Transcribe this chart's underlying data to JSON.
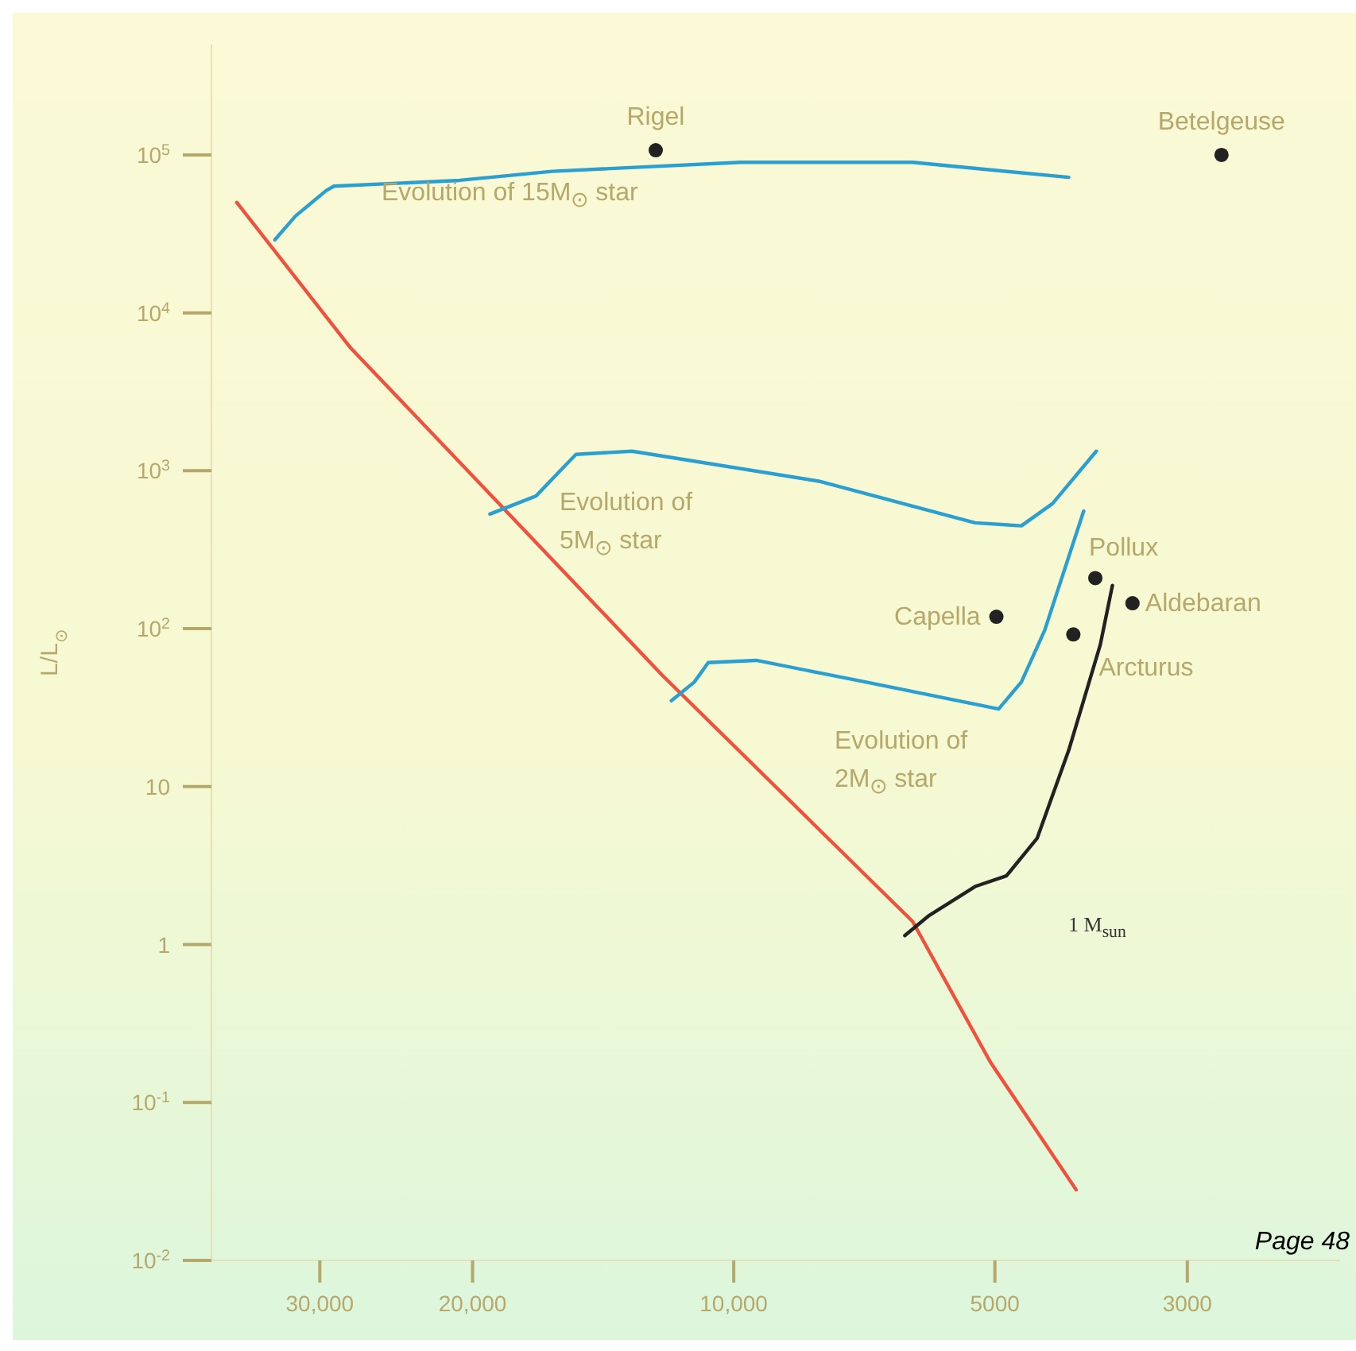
{
  "chart_data": {
    "type": "line",
    "ylabel": "L/L$_{⊙}$",
    "log": "xy",
    "grid": false,
    "marker": "none",
    "line_style": "solid",
    "xlim": [
      40000,
      2000
    ],
    "xticks": [
      {
        "value": 30000,
        "label": "30,000"
      },
      {
        "value": 20000,
        "label": "20,000"
      },
      {
        "value": 10000,
        "label": "10,000"
      },
      5000,
      3000
    ],
    "ylim": [
      0.01,
      500000
    ],
    "yticks": [
      {
        "value": 0.01,
        "label": "10$^{-2}$"
      },
      {
        "value": 0.1,
        "label": "10$^{-1}$"
      },
      1,
      10,
      {
        "value": 100,
        "label": "10$^{2}$"
      },
      {
        "value": 1000,
        "label": "10$^{3}$"
      },
      {
        "value": 10000,
        "label": "10$^{4}$"
      },
      {
        "value": 100000,
        "label": "10$^{5}$"
      }
    ],
    "series": [
      {
        "color": "#f0503c",
        "x": [
          37400,
          27700,
          18300,
          12100,
          6220,
          5060,
          4030
        ],
        "values": [
          50000,
          6070,
          556,
          51,
          1.4,
          0.18,
          0.028
        ]
      },
      {
        "color": "#2a9fd0",
        "x": [
          33800,
          32000,
          29500,
          28900,
          20700,
          16200,
          9820,
          6220,
          4110
        ],
        "values": [
          29000,
          41000,
          59400,
          63400,
          69000,
          78700,
          89700,
          89700,
          72100
        ]
      },
      {
        "color": "#2a9fd0",
        "x": [
          19100,
          16900,
          15800,
          15200,
          13100,
          7980,
          5270,
          4660,
          4290,
          3820
        ],
        "values": [
          532,
          692,
          1020,
          1270,
          1330,
          859,
          468,
          448,
          620,
          1330
        ]
      },
      {
        "color": "#2a9fd0",
        "x": [
          11800,
          11100,
          10700,
          9420,
          7050,
          4950,
          4660,
          4380,
          3950
        ],
        "values": [
          35,
          46,
          61,
          63,
          46,
          31,
          46,
          98,
          556
        ]
      },
      {
        "color": "#222222",
        "x": [
          6350,
          5970,
          5270,
          4850,
          4470,
          4110,
          3780,
          3660
        ],
        "values": [
          1.14,
          1.51,
          2.33,
          2.72,
          4.7,
          17,
          79,
          188
        ]
      },
      {
        "type": "scatter",
        "color": "#222222",
        "marker": "circle",
        "x": [
          12300,
          2740,
          4980,
          3830,
          3470,
          4060
        ],
        "values": [
          107000,
          100000,
          119,
          209,
          145,
          92
        ]
      }
    ],
    "annotations": [
      {
        "text": "Rigel",
        "x": 12300,
        "y": 107000
      },
      {
        "text": "Betelgeuse",
        "x": 2740,
        "y": 100000
      },
      {
        "text": "Capella",
        "x": 4980,
        "y": 119
      },
      {
        "text": "Pollux",
        "x": 3830,
        "y": 209
      },
      {
        "text": "Aldebaran",
        "x": 3470,
        "y": 145
      },
      {
        "text": "Arcturus",
        "x": 4060,
        "y": 92
      },
      "Evolution of 15M$_{⊙}$ star",
      "Evolution of\n5M$_{⊙}$ star",
      "Evolution of\n2M$_{⊙}$ star",
      "1 M$_{sun}$",
      "Page 48"
    ]
  }
}
